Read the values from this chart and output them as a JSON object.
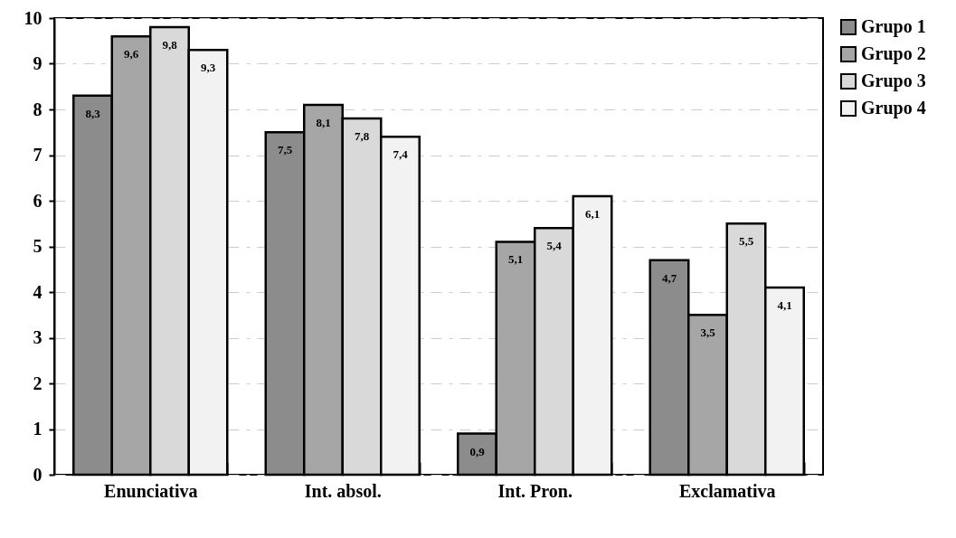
{
  "chart_data": {
    "type": "bar",
    "categories": [
      "Enunciativa",
      "Int. absol.",
      "Int. Pron.",
      "Exclamativa"
    ],
    "series": [
      {
        "name": "Grupo 1",
        "color": "#8c8c8c",
        "values": [
          8.3,
          7.5,
          0.9,
          4.7
        ],
        "value_labels": [
          "8,3",
          "7,5",
          "0,9",
          "4,7"
        ]
      },
      {
        "name": "Grupo 2",
        "color": "#a6a6a6",
        "values": [
          9.6,
          8.1,
          5.1,
          3.5
        ],
        "value_labels": [
          "9,6",
          "8,1",
          "5,1",
          "3,5"
        ]
      },
      {
        "name": "Grupo 3",
        "color": "#d9d9d9",
        "values": [
          9.8,
          7.8,
          5.4,
          5.5
        ],
        "value_labels": [
          "9,8",
          "7,8",
          "5,4",
          "5,5"
        ]
      },
      {
        "name": "Grupo 4",
        "color": "#f2f2f2",
        "values": [
          9.3,
          7.4,
          6.1,
          4.1
        ],
        "value_labels": [
          "9,3",
          "7,4",
          "6,1",
          "4,1"
        ]
      }
    ],
    "ylim": [
      0,
      10
    ],
    "yticks": [
      0,
      1,
      2,
      3,
      4,
      5,
      6,
      7,
      8,
      9,
      10
    ],
    "grid": "y",
    "legend": "right"
  }
}
